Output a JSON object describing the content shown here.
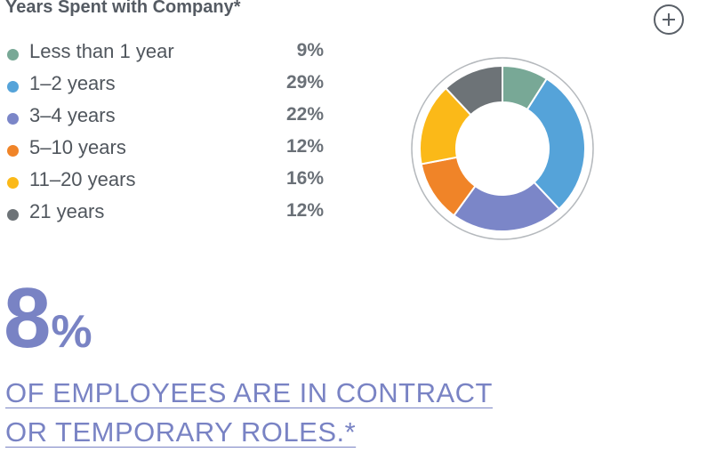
{
  "title": "Years Spent with Company*",
  "expand_button": {
    "icon": "plus-circle-icon"
  },
  "chart_data": {
    "type": "pie",
    "variant": "donut",
    "categories": [
      "Less than 1 year",
      "1–2 years",
      "3–4 years",
      "5–10 years",
      "11–20 years",
      "21 years"
    ],
    "values": [
      9,
      29,
      22,
      12,
      16,
      12
    ],
    "value_labels": [
      "9%",
      "29%",
      "22%",
      "12%",
      "16%",
      "12%"
    ],
    "colors": [
      "#78a896",
      "#55a3d9",
      "#7b86c8",
      "#f08428",
      "#fbb918",
      "#6d7377"
    ],
    "title": "Years Spent with Company*",
    "legend_position": "left"
  },
  "highlight": {
    "number": "8",
    "suffix": "%",
    "statement": [
      "OF EMPLOYEES ARE IN CONTRACT",
      "OR TEMPORARY ROLES.*"
    ]
  }
}
